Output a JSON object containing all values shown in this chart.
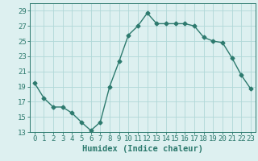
{
  "title": "",
  "xlabel": "Humidex (Indice chaleur)",
  "ylabel": "",
  "x": [
    0,
    1,
    2,
    3,
    4,
    5,
    6,
    7,
    8,
    9,
    10,
    11,
    12,
    13,
    14,
    15,
    16,
    17,
    18,
    19,
    20,
    21,
    22,
    23
  ],
  "y": [
    19.5,
    17.5,
    16.3,
    16.3,
    15.5,
    14.3,
    13.2,
    14.3,
    19.0,
    22.3,
    25.8,
    27.0,
    28.7,
    27.3,
    27.3,
    27.3,
    27.3,
    27.0,
    25.5,
    25.0,
    24.8,
    22.8,
    20.5,
    18.7
  ],
  "line_color": "#2d7a6e",
  "marker": "D",
  "marker_size": 2.5,
  "bg_color": "#ddf0f0",
  "grid_color": "#b0d8d8",
  "ylim": [
    13,
    30
  ],
  "yticks": [
    13,
    15,
    17,
    19,
    21,
    23,
    25,
    27,
    29
  ],
  "xlim": [
    -0.5,
    23.5
  ],
  "xticks": [
    0,
    1,
    2,
    3,
    4,
    5,
    6,
    7,
    8,
    9,
    10,
    11,
    12,
    13,
    14,
    15,
    16,
    17,
    18,
    19,
    20,
    21,
    22,
    23
  ],
  "tick_label_fontsize": 6.5,
  "xlabel_fontsize": 7.5,
  "line_width": 1.0
}
